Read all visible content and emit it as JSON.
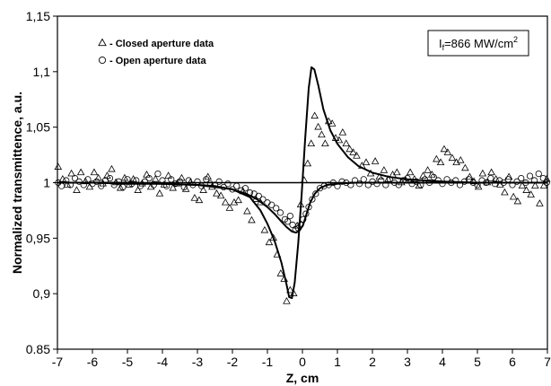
{
  "chart_data": {
    "type": "scatter",
    "xlabel": "Z, cm",
    "ylabel": "Normalized transmittence, a.u.",
    "xlim": [
      -7,
      7
    ],
    "ylim": [
      0.85,
      1.15
    ],
    "x_ticks": [
      "-7",
      "-6",
      "-5",
      "-4",
      "-3",
      "-2",
      "-1",
      "0",
      "1",
      "2",
      "3",
      "4",
      "5",
      "6",
      "7"
    ],
    "y_ticks": [
      "0.85",
      "0,9",
      "0,95",
      "1",
      "1,05",
      "1,1",
      "1,15"
    ],
    "legend": [
      {
        "marker": "triangle",
        "label": "- Closed aperture data"
      },
      {
        "marker": "circle",
        "label": "- Open aperture data"
      }
    ],
    "legend_position": "top-left",
    "annotation": {
      "prefix": "I",
      "subscript": "f",
      "main": "=866 MW/cm",
      "superscript": "2"
    },
    "annotation_position": "top-right",
    "series": [
      {
        "marker": "triangle",
        "points": [
          [
            -6.98,
            1.014
          ],
          [
            -6.85,
            1.003
          ],
          [
            -6.72,
            0.998
          ],
          [
            -6.6,
            1.008
          ],
          [
            -6.45,
            0.993
          ],
          [
            -6.33,
            1.009
          ],
          [
            -6.2,
            1.001
          ],
          [
            -6.08,
            0.996
          ],
          [
            -5.95,
            1.009
          ],
          [
            -5.83,
            1.004
          ],
          [
            -5.7,
            0.999
          ],
          [
            -5.58,
            1.006
          ],
          [
            -5.45,
            1.012
          ],
          [
            -5.33,
            1.0
          ],
          [
            -5.2,
            0.995
          ],
          [
            -5.08,
            1.004
          ],
          [
            -4.95,
            0.998
          ],
          [
            -4.83,
            1.003
          ],
          [
            -4.7,
            0.993
          ],
          [
            -4.58,
            0.999
          ],
          [
            -4.45,
            1.007
          ],
          [
            -4.33,
            0.996
          ],
          [
            -4.2,
            1.003
          ],
          [
            -4.08,
            0.99
          ],
          [
            -3.95,
            0.998
          ],
          [
            -3.83,
            1.006
          ],
          [
            -3.7,
            0.995
          ],
          [
            -3.58,
            0.999
          ],
          [
            -3.45,
            1.004
          ],
          [
            -3.33,
            0.994
          ],
          [
            -3.2,
            1.0
          ],
          [
            -3.08,
            0.986
          ],
          [
            -2.95,
            0.984
          ],
          [
            -2.83,
            0.993
          ],
          [
            -2.7,
            1.005
          ],
          [
            -2.58,
            0.996
          ],
          [
            -2.45,
            0.99
          ],
          [
            -2.33,
            0.988
          ],
          [
            -2.2,
            0.982
          ],
          [
            -2.08,
            0.977
          ],
          [
            -1.95,
            0.982
          ],
          [
            -1.83,
            0.984
          ],
          [
            -1.7,
            0.992
          ],
          [
            -1.58,
            0.974
          ],
          [
            -1.45,
            0.966
          ],
          [
            -1.33,
            0.985
          ],
          [
            -1.2,
            0.982
          ],
          [
            -1.08,
            0.957
          ],
          [
            -0.95,
            0.946
          ],
          [
            -0.83,
            0.95
          ],
          [
            -0.72,
            0.935
          ],
          [
            -0.62,
            0.918
          ],
          [
            -0.52,
            0.913
          ],
          [
            -0.45,
            0.893
          ],
          [
            -0.35,
            0.903
          ],
          [
            -0.25,
            0.9
          ],
          [
            -0.15,
            0.961
          ],
          [
            -0.05,
            0.98
          ],
          [
            0.05,
            1.002
          ],
          [
            0.15,
            1.017
          ],
          [
            0.25,
            1.035
          ],
          [
            0.35,
            1.06
          ],
          [
            0.45,
            1.05
          ],
          [
            0.55,
            1.043
          ],
          [
            0.65,
            1.035
          ],
          [
            0.75,
            1.055
          ],
          [
            0.85,
            1.053
          ],
          [
            0.95,
            1.04
          ],
          [
            1.05,
            1.038
          ],
          [
            1.15,
            1.045
          ],
          [
            1.25,
            1.035
          ],
          [
            1.35,
            1.03
          ],
          [
            1.45,
            1.027
          ],
          [
            1.55,
            1.024
          ],
          [
            1.7,
            1.015
          ],
          [
            1.82,
            1.018
          ],
          [
            1.95,
            1.008
          ],
          [
            2.08,
            1.019
          ],
          [
            2.2,
            1.005
          ],
          [
            2.33,
            1.011
          ],
          [
            2.45,
            1.003
          ],
          [
            2.58,
            1.007
          ],
          [
            2.7,
            1.009
          ],
          [
            2.83,
            1.0
          ],
          [
            2.95,
            1.002
          ],
          [
            3.08,
            1.009
          ],
          [
            3.2,
            1.003
          ],
          [
            3.33,
            0.997
          ],
          [
            3.45,
            1.006
          ],
          [
            3.58,
            1.011
          ],
          [
            3.7,
            1.007
          ],
          [
            3.83,
            1.021
          ],
          [
            3.95,
            1.018
          ],
          [
            4.05,
            1.03
          ],
          [
            4.15,
            1.027
          ],
          [
            4.28,
            1.022
          ],
          [
            4.4,
            1.018
          ],
          [
            4.52,
            1.02
          ],
          [
            4.65,
            1.013
          ],
          [
            4.78,
            1.005
          ],
          [
            4.9,
            1.001
          ],
          [
            5.03,
            0.996
          ],
          [
            5.15,
            1.008
          ],
          [
            5.28,
            1.0
          ],
          [
            5.4,
            1.009
          ],
          [
            5.53,
            1.003
          ],
          [
            5.65,
            0.998
          ],
          [
            5.78,
            0.991
          ],
          [
            5.9,
            1.005
          ],
          [
            6.03,
            0.987
          ],
          [
            6.15,
            0.983
          ],
          [
            6.28,
            0.997
          ],
          [
            6.4,
            0.993
          ],
          [
            6.53,
            0.989
          ],
          [
            6.65,
            0.997
          ],
          [
            6.78,
            0.981
          ],
          [
            6.9,
            0.997
          ],
          [
            6.98,
            1.003
          ]
        ]
      },
      {
        "marker": "circle",
        "points": [
          [
            -6.98,
            1.0
          ],
          [
            -6.88,
            0.997
          ],
          [
            -6.75,
            1.002
          ],
          [
            -6.63,
            0.998
          ],
          [
            -6.5,
            1.004
          ],
          [
            -6.38,
            1.001
          ],
          [
            -6.25,
            0.998
          ],
          [
            -6.13,
            1.003
          ],
          [
            -6.0,
            0.999
          ],
          [
            -5.88,
            1.001
          ],
          [
            -5.75,
            0.997
          ],
          [
            -5.63,
            1.002
          ],
          [
            -5.5,
            1.004
          ],
          [
            -5.38,
            0.998
          ],
          [
            -5.25,
            1.001
          ],
          [
            -5.13,
            0.996
          ],
          [
            -5.0,
            1.003
          ],
          [
            -4.88,
            0.999
          ],
          [
            -4.75,
            1.002
          ],
          [
            -4.63,
            0.997
          ],
          [
            -4.5,
            1.001
          ],
          [
            -4.38,
            1.004
          ],
          [
            -4.25,
            0.998
          ],
          [
            -4.13,
            1.008
          ],
          [
            -4.0,
            1.002
          ],
          [
            -3.88,
            0.997
          ],
          [
            -3.75,
            1.003
          ],
          [
            -3.63,
            0.999
          ],
          [
            -3.5,
            1.001
          ],
          [
            -3.38,
            0.996
          ],
          [
            -3.25,
            1.002
          ],
          [
            -3.13,
            0.998
          ],
          [
            -3.0,
            1.001
          ],
          [
            -2.88,
            0.997
          ],
          [
            -2.75,
            1.003
          ],
          [
            -2.63,
            0.999
          ],
          [
            -2.5,
            0.998
          ],
          [
            -2.38,
            1.001
          ],
          [
            -2.25,
            0.996
          ],
          [
            -2.13,
            0.999
          ],
          [
            -2.0,
            0.994
          ],
          [
            -1.88,
            0.997
          ],
          [
            -1.75,
            0.993
          ],
          [
            -1.63,
            0.995
          ],
          [
            -1.5,
            0.991
          ],
          [
            -1.38,
            0.99
          ],
          [
            -1.25,
            0.988
          ],
          [
            -1.13,
            0.985
          ],
          [
            -1.0,
            0.982
          ],
          [
            -0.88,
            0.98
          ],
          [
            -0.75,
            0.977
          ],
          [
            -0.63,
            0.973
          ],
          [
            -0.5,
            0.967
          ],
          [
            -0.42,
            0.965
          ],
          [
            -0.35,
            0.97
          ],
          [
            -0.28,
            0.962
          ],
          [
            -0.2,
            0.958
          ],
          [
            -0.12,
            0.959
          ],
          [
            -0.05,
            0.962
          ],
          [
            0.02,
            0.967
          ],
          [
            0.1,
            0.972
          ],
          [
            0.18,
            0.978
          ],
          [
            0.28,
            0.985
          ],
          [
            0.38,
            0.99
          ],
          [
            0.5,
            0.995
          ],
          [
            0.62,
            0.997
          ],
          [
            0.75,
            0.998
          ],
          [
            0.88,
            1.0
          ],
          [
            1.0,
            0.997
          ],
          [
            1.13,
            1.001
          ],
          [
            1.25,
            1.0
          ],
          [
            1.38,
            0.998
          ],
          [
            1.5,
            1.002
          ],
          [
            1.63,
            0.999
          ],
          [
            1.75,
            1.003
          ],
          [
            1.88,
            0.998
          ],
          [
            2.0,
            1.001
          ],
          [
            2.13,
            0.999
          ],
          [
            2.25,
            1.002
          ],
          [
            2.38,
            0.998
          ],
          [
            2.5,
            1.003
          ],
          [
            2.63,
            1.0
          ],
          [
            2.75,
            0.998
          ],
          [
            2.88,
            1.002
          ],
          [
            3.0,
            1.004
          ],
          [
            3.13,
            0.999
          ],
          [
            3.25,
            1.001
          ],
          [
            3.38,
            0.998
          ],
          [
            3.5,
            1.003
          ],
          [
            3.63,
            1.0
          ],
          [
            3.75,
            1.005
          ],
          [
            3.88,
            1.002
          ],
          [
            4.0,
            0.999
          ],
          [
            4.13,
            1.003
          ],
          [
            4.25,
            1.0
          ],
          [
            4.38,
            1.002
          ],
          [
            4.5,
            0.998
          ],
          [
            4.63,
            1.001
          ],
          [
            4.75,
            1.003
          ],
          [
            4.88,
            1.0
          ],
          [
            5.0,
            0.998
          ],
          [
            5.13,
            1.002
          ],
          [
            5.25,
            1.0
          ],
          [
            5.38,
            1.004
          ],
          [
            5.5,
            0.999
          ],
          [
            5.63,
            1.002
          ],
          [
            5.75,
            1.0
          ],
          [
            5.88,
            1.003
          ],
          [
            6.0,
            0.998
          ],
          [
            6.13,
            1.001
          ],
          [
            6.25,
            1.004
          ],
          [
            6.38,
            1.0
          ],
          [
            6.5,
            1.006
          ],
          [
            6.63,
            1.002
          ],
          [
            6.75,
            1.008
          ],
          [
            6.88,
            1.004
          ],
          [
            6.98,
            1.0
          ]
        ]
      },
      {
        "kind": "fit-line",
        "points": [
          [
            -7,
            1.0
          ],
          [
            -6,
            1.0
          ],
          [
            -5,
            0.999
          ],
          [
            -4,
            0.999
          ],
          [
            -3,
            0.998
          ],
          [
            -2.5,
            0.997
          ],
          [
            -2,
            0.994
          ],
          [
            -1.5,
            0.987
          ],
          [
            -1.2,
            0.975
          ],
          [
            -1.0,
            0.963
          ],
          [
            -0.8,
            0.948
          ],
          [
            -0.6,
            0.928
          ],
          [
            -0.45,
            0.908
          ],
          [
            -0.38,
            0.897
          ],
          [
            -0.3,
            0.896
          ],
          [
            -0.22,
            0.91
          ],
          [
            -0.12,
            0.945
          ],
          [
            -0.02,
            0.99
          ],
          [
            0.08,
            1.04
          ],
          [
            0.18,
            1.085
          ],
          [
            0.26,
            1.104
          ],
          [
            0.34,
            1.102
          ],
          [
            0.45,
            1.088
          ],
          [
            0.6,
            1.066
          ],
          [
            0.8,
            1.047
          ],
          [
            1.0,
            1.035
          ],
          [
            1.3,
            1.023
          ],
          [
            1.6,
            1.015
          ],
          [
            2.0,
            1.009
          ],
          [
            2.5,
            1.005
          ],
          [
            3.0,
            1.003
          ],
          [
            4.0,
            1.001
          ],
          [
            5.0,
            1.0
          ],
          [
            6.0,
            1.0
          ],
          [
            7.0,
            1.0
          ]
        ]
      },
      {
        "kind": "fit-line",
        "points": [
          [
            -7,
            1.0
          ],
          [
            -5,
            1.0
          ],
          [
            -4,
            0.999
          ],
          [
            -3,
            0.998
          ],
          [
            -2.5,
            0.996
          ],
          [
            -2.0,
            0.994
          ],
          [
            -1.6,
            0.99
          ],
          [
            -1.3,
            0.985
          ],
          [
            -1.0,
            0.978
          ],
          [
            -0.8,
            0.972
          ],
          [
            -0.6,
            0.965
          ],
          [
            -0.45,
            0.96
          ],
          [
            -0.3,
            0.956
          ],
          [
            -0.18,
            0.955
          ],
          [
            -0.08,
            0.957
          ],
          [
            0.02,
            0.962
          ],
          [
            0.12,
            0.972
          ],
          [
            0.22,
            0.982
          ],
          [
            0.35,
            0.99
          ],
          [
            0.5,
            0.995
          ],
          [
            0.7,
            0.998
          ],
          [
            1.0,
            0.999
          ],
          [
            1.5,
            1.0
          ],
          [
            3.0,
            1.0
          ],
          [
            7.0,
            1.0
          ]
        ]
      }
    ]
  }
}
